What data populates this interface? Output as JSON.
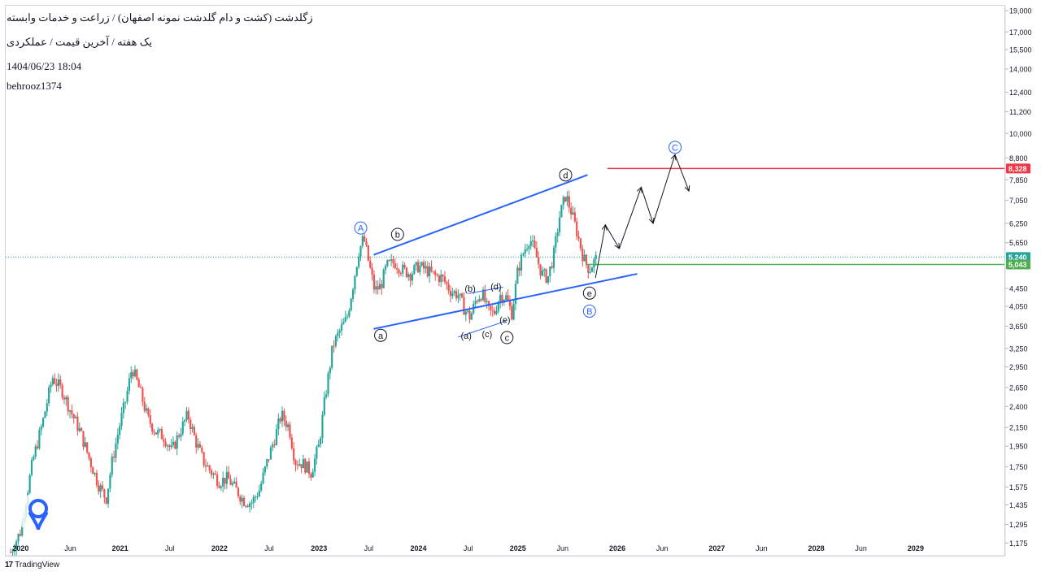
{
  "header": {
    "title": "زگلدشت (کشت و دام گلدشت نمونه اصفهان) / زراعت و خدمات وابسته",
    "subtitle": "یک هفته / آخرین قیمت / عملکردی",
    "datetime": "1404/06/23 18:04",
    "author": "behrooz1374"
  },
  "footer": {
    "brand": "TradingView",
    "brand_mark": "17"
  },
  "colors": {
    "up": "#26a69a",
    "down": "#ef5350",
    "channel": "#2962ff",
    "resistance": "#f23645",
    "support": "#4caf50",
    "label_blue": "#2962ff",
    "text": "#131722"
  },
  "chart_data": {
    "type": "candlestick",
    "y_scale": "log",
    "ylim": [
      1100,
      19500
    ],
    "xlim": [
      2019.85,
      2029.9
    ],
    "x_ticks": [
      {
        "x": 2020.0,
        "label": "2020"
      },
      {
        "x": 2020.5,
        "label": "Jun"
      },
      {
        "x": 2021.0,
        "label": "2021"
      },
      {
        "x": 2021.5,
        "label": "Jul"
      },
      {
        "x": 2022.0,
        "label": "2022"
      },
      {
        "x": 2022.5,
        "label": "Jul"
      },
      {
        "x": 2023.0,
        "label": "2023"
      },
      {
        "x": 2023.5,
        "label": "Jul"
      },
      {
        "x": 2024.0,
        "label": "2024"
      },
      {
        "x": 2024.5,
        "label": "Jul"
      },
      {
        "x": 2025.0,
        "label": "2025"
      },
      {
        "x": 2025.45,
        "label": "Jun"
      },
      {
        "x": 2026.0,
        "label": "2026"
      },
      {
        "x": 2026.45,
        "label": "Jun"
      },
      {
        "x": 2027.0,
        "label": "2027"
      },
      {
        "x": 2027.45,
        "label": "Jun"
      },
      {
        "x": 2028.0,
        "label": "2028"
      },
      {
        "x": 2028.45,
        "label": "Jun"
      },
      {
        "x": 2029.0,
        "label": "2029"
      }
    ],
    "y_ticks": [
      {
        "value": 19000,
        "label": "19,000"
      },
      {
        "value": 17000,
        "label": "17,000"
      },
      {
        "value": 15500,
        "label": "15,500"
      },
      {
        "value": 14000,
        "label": "14,000"
      },
      {
        "value": 12400,
        "label": "12,400"
      },
      {
        "value": 11200,
        "label": "11,200"
      },
      {
        "value": 10000,
        "label": "10,000"
      },
      {
        "value": 8800,
        "label": "8,800"
      },
      {
        "value": 7850,
        "label": "7,850"
      },
      {
        "value": 7050,
        "label": "7,050"
      },
      {
        "value": 6250,
        "label": "6,250"
      },
      {
        "value": 5650,
        "label": "5,650"
      },
      {
        "value": 4450,
        "label": "4,450"
      },
      {
        "value": 4050,
        "label": "4,050"
      },
      {
        "value": 3650,
        "label": "3,650"
      },
      {
        "value": 3250,
        "label": "3,250"
      },
      {
        "value": 2950,
        "label": "2,950"
      },
      {
        "value": 2650,
        "label": "2,650"
      },
      {
        "value": 2400,
        "label": "2,400"
      },
      {
        "value": 2150,
        "label": "2,150"
      },
      {
        "value": 1950,
        "label": "1,950"
      },
      {
        "value": 1750,
        "label": "1,750"
      },
      {
        "value": 1575,
        "label": "1,575"
      },
      {
        "value": 1435,
        "label": "1,435"
      },
      {
        "value": 1295,
        "label": "1,295"
      },
      {
        "value": 1175,
        "label": "1,175"
      }
    ],
    "price_markers": [
      {
        "value": 8328,
        "label": "8,328",
        "color": "#f23645"
      },
      {
        "value": 5240,
        "label": "5,240",
        "color": "#26a69a"
      },
      {
        "value": 5043,
        "label": "5,043",
        "color": "#4caf50"
      }
    ],
    "last_price": 5240,
    "path": [
      [
        2019.9,
        1120
      ],
      [
        2020.0,
        1250
      ],
      [
        2020.12,
        1800
      ],
      [
        2020.22,
        2200
      ],
      [
        2020.32,
        2800
      ],
      [
        2020.42,
        2600
      ],
      [
        2020.5,
        2350
      ],
      [
        2020.6,
        2100
      ],
      [
        2020.7,
        1800
      ],
      [
        2020.78,
        1600
      ],
      [
        2020.86,
        1480
      ],
      [
        2020.92,
        1800
      ],
      [
        2021.0,
        2200
      ],
      [
        2021.06,
        2500
      ],
      [
        2021.12,
        2950
      ],
      [
        2021.2,
        2600
      ],
      [
        2021.28,
        2250
      ],
      [
        2021.36,
        2100
      ],
      [
        2021.44,
        2050
      ],
      [
        2021.52,
        1900
      ],
      [
        2021.6,
        2100
      ],
      [
        2021.68,
        2300
      ],
      [
        2021.76,
        2000
      ],
      [
        2021.84,
        1800
      ],
      [
        2021.92,
        1700
      ],
      [
        2022.0,
        1620
      ],
      [
        2022.08,
        1650
      ],
      [
        2022.16,
        1560
      ],
      [
        2022.24,
        1470
      ],
      [
        2022.32,
        1450
      ],
      [
        2022.4,
        1550
      ],
      [
        2022.48,
        1800
      ],
      [
        2022.56,
        2050
      ],
      [
        2022.62,
        2300
      ],
      [
        2022.7,
        2150
      ],
      [
        2022.76,
        1800
      ],
      [
        2022.84,
        1780
      ],
      [
        2022.92,
        1700
      ],
      [
        2023.0,
        1960
      ],
      [
        2023.06,
        2500
      ],
      [
        2023.14,
        3300
      ],
      [
        2023.22,
        3600
      ],
      [
        2023.28,
        3800
      ],
      [
        2023.34,
        4500
      ],
      [
        2023.4,
        5400
      ],
      [
        2023.45,
        5800
      ],
      [
        2023.5,
        5100
      ],
      [
        2023.56,
        4400
      ],
      [
        2023.62,
        4500
      ],
      [
        2023.68,
        5000
      ],
      [
        2023.76,
        5100
      ],
      [
        2023.84,
        4900
      ],
      [
        2023.92,
        4800
      ],
      [
        2024.0,
        5000
      ],
      [
        2024.08,
        4900
      ],
      [
        2024.16,
        4750
      ],
      [
        2024.24,
        4700
      ],
      [
        2024.32,
        4400
      ],
      [
        2024.4,
        4300
      ],
      [
        2024.46,
        4000
      ],
      [
        2024.52,
        3820
      ],
      [
        2024.58,
        4200
      ],
      [
        2024.64,
        4350
      ],
      [
        2024.7,
        3950
      ],
      [
        2024.76,
        3900
      ],
      [
        2024.82,
        4300
      ],
      [
        2024.88,
        4250
      ],
      [
        2024.94,
        3900
      ],
      [
        2025.0,
        4900
      ],
      [
        2025.06,
        5400
      ],
      [
        2025.12,
        5800
      ],
      [
        2025.18,
        5300
      ],
      [
        2025.24,
        4800
      ],
      [
        2025.3,
        4700
      ],
      [
        2025.36,
        5300
      ],
      [
        2025.42,
        6500
      ],
      [
        2025.48,
        7250
      ],
      [
        2025.54,
        6600
      ],
      [
        2025.6,
        5900
      ],
      [
        2025.66,
        5200
      ],
      [
        2025.72,
        4900
      ],
      [
        2025.76,
        5100
      ],
      [
        2025.8,
        5240
      ]
    ],
    "forecast": [
      [
        2025.78,
        4700
      ],
      [
        2025.88,
        6200
      ],
      [
        2026.02,
        5480
      ],
      [
        2026.24,
        7550
      ],
      [
        2026.36,
        6250
      ],
      [
        2026.58,
        8950
      ],
      [
        2026.72,
        7400
      ]
    ],
    "channel_lines": [
      {
        "from": [
          2023.55,
          3600
        ],
        "to": [
          2026.2,
          4800
        ]
      },
      {
        "from": [
          2023.55,
          5300
        ],
        "to": [
          2025.7,
          8050
        ]
      }
    ],
    "inner_lines": [
      {
        "from": [
          2024.4,
          3450
        ],
        "to": [
          2024.88,
          3750
        ]
      },
      {
        "from": [
          2024.5,
          4330
        ],
        "to": [
          2024.85,
          4480
        ]
      }
    ],
    "horizontal_lines": [
      {
        "value": 8328,
        "x_start": 2025.9,
        "color": "#f23645"
      },
      {
        "value": 5043,
        "x_start": 2025.68,
        "color": "#4caf50"
      }
    ],
    "wave_labels": [
      {
        "text": "A",
        "x": 2023.42,
        "value": 6100,
        "style": "circle-blue"
      },
      {
        "text": "b",
        "x": 2023.79,
        "value": 5900,
        "style": "circle-black"
      },
      {
        "text": "a",
        "x": 2023.62,
        "value": 3480,
        "style": "circle-black"
      },
      {
        "text": "(a)",
        "x": 2024.48,
        "value": 3480,
        "style": "plain"
      },
      {
        "text": "(b)",
        "x": 2024.52,
        "value": 4450,
        "style": "plain"
      },
      {
        "text": "(c)",
        "x": 2024.69,
        "value": 3510,
        "style": "plain"
      },
      {
        "text": "(d)",
        "x": 2024.78,
        "value": 4500,
        "style": "plain"
      },
      {
        "text": "(e)",
        "x": 2024.87,
        "value": 3780,
        "style": "plain"
      },
      {
        "text": "c",
        "x": 2024.89,
        "value": 3440,
        "style": "circle-black"
      },
      {
        "text": "d",
        "x": 2025.48,
        "value": 8050,
        "style": "circle-black"
      },
      {
        "text": "e",
        "x": 2025.72,
        "value": 4340,
        "style": "circle-black"
      },
      {
        "text": "B",
        "x": 2025.72,
        "value": 3950,
        "style": "circle-blue"
      },
      {
        "text": "C",
        "x": 2026.58,
        "value": 9300,
        "style": "circle-blue"
      }
    ]
  }
}
